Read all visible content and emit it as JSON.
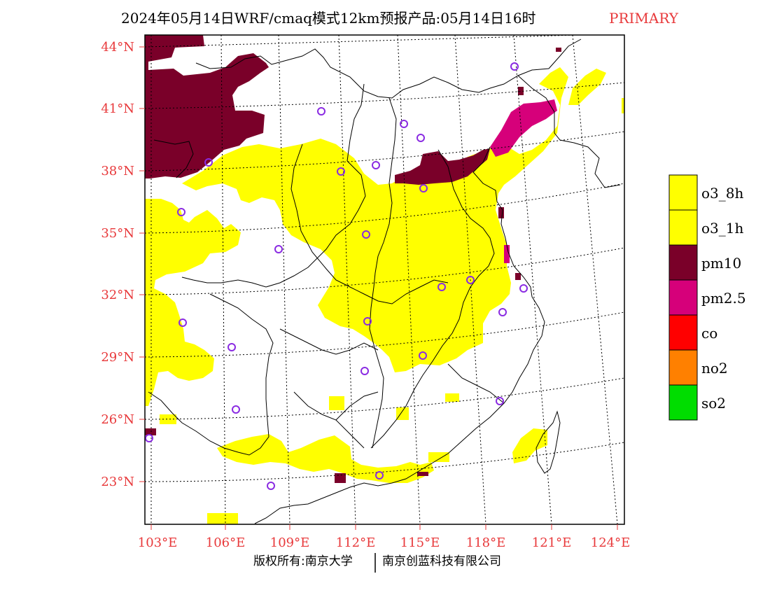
{
  "title": {
    "main": "2024年05月14日WRF/cmaq模式12km预报产品:05月14日16时",
    "tag": "PRIMARY",
    "tag_color": "#e8393b"
  },
  "axis_color": "#e8393b",
  "lat_labels": [
    "44°N",
    "41°N",
    "38°N",
    "35°N",
    "32°N",
    "29°N",
    "26°N",
    "23°N"
  ],
  "lon_labels": [
    "103°E",
    "106°E",
    "109°E",
    "112°E",
    "115°E",
    "118°E",
    "121°E",
    "124°E"
  ],
  "legend": [
    {
      "label": "o3_8h",
      "color": "#ffff00"
    },
    {
      "label": "o3_1h",
      "color": "#ffff00"
    },
    {
      "label": "pm10",
      "color": "#7a0029"
    },
    {
      "label": "pm2.5",
      "color": "#d6007a"
    },
    {
      "label": "co",
      "color": "#ff0000"
    },
    {
      "label": "no2",
      "color": "#ff8000"
    },
    {
      "label": "so2",
      "color": "#00dd00"
    }
  ],
  "station_color": "#8a2be2",
  "footer": {
    "left": "版权所有:南京大学",
    "right": "南京创蓝科技有限公司"
  }
}
